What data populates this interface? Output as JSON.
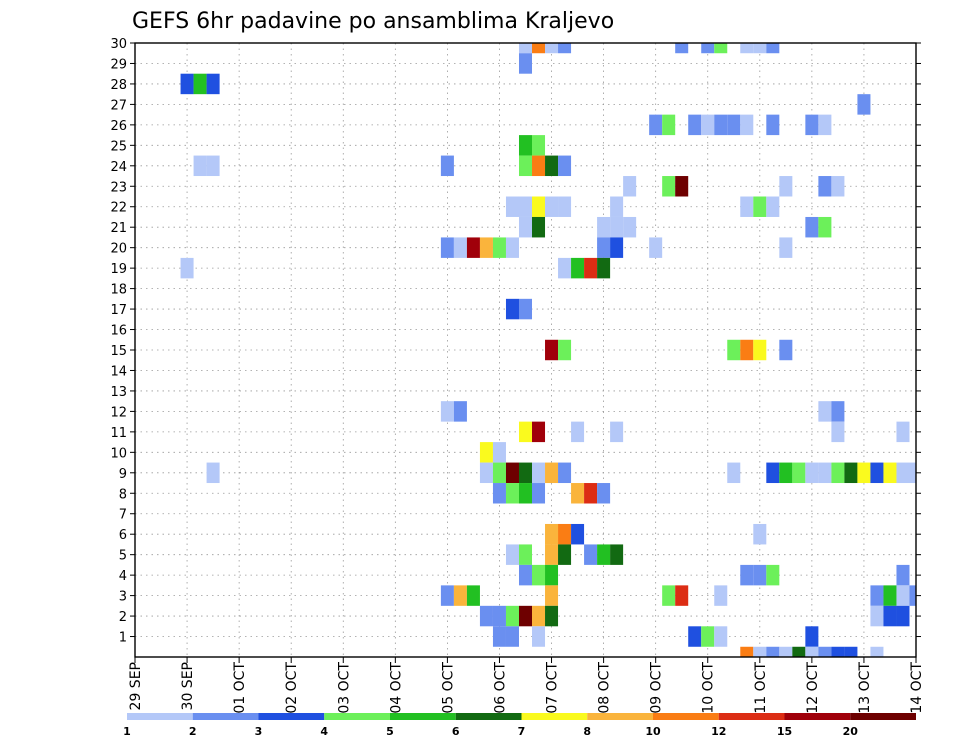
{
  "chart_data": {
    "type": "heatmap",
    "title": "GEFS 6hr padavine po ansamblima Kraljevo",
    "xlabel": "",
    "ylabel": "",
    "x_ticks": [
      "29 SEP",
      "30 SEP",
      "01 OCT",
      "02 OCT",
      "03 OCT",
      "04 OCT",
      "05 OCT",
      "06 OCT",
      "07 OCT",
      "08 OCT",
      "09 OCT",
      "10 OCT",
      "11 OCT",
      "12 OCT",
      "13 OCT",
      "14 OCT"
    ],
    "x_range_days": [
      0,
      15
    ],
    "y_ticks": [
      "1",
      "2",
      "3",
      "4",
      "5",
      "6",
      "7",
      "8",
      "9",
      "10",
      "11",
      "12",
      "13",
      "14",
      "15",
      "16",
      "17",
      "18",
      "19",
      "20",
      "21",
      "22",
      "23",
      "24",
      "25",
      "26",
      "27",
      "28",
      "29",
      "30"
    ],
    "y_range": [
      0,
      30
    ],
    "grid": true,
    "colorbar": {
      "labels": [
        "1",
        "2",
        "3",
        "4",
        "5",
        "6",
        "7",
        "8",
        "10",
        "12",
        "15",
        "20"
      ],
      "colors": [
        "#b4c8f8",
        "#6a8ff0",
        "#1f50e0",
        "#6cf05a",
        "#22c022",
        "#126a12",
        "#fafa1e",
        "#fab43c",
        "#fa7d14",
        "#dc2d14",
        "#a0000a",
        "#6e0000"
      ]
    },
    "cells": [
      [
        7.5,
        30,
        0
      ],
      [
        7.75,
        30,
        8
      ],
      [
        8,
        30,
        0
      ],
      [
        8.25,
        30,
        1
      ],
      [
        10.5,
        30,
        1
      ],
      [
        11,
        30,
        1
      ],
      [
        11.25,
        30,
        3
      ],
      [
        11.75,
        30,
        0
      ],
      [
        12,
        30,
        0
      ],
      [
        12.25,
        30,
        1
      ],
      [
        7.5,
        29,
        1
      ],
      [
        1.0,
        28,
        2
      ],
      [
        1.25,
        28,
        4
      ],
      [
        1.5,
        28,
        2
      ],
      [
        14,
        27,
        1
      ],
      [
        10,
        26,
        1
      ],
      [
        10.25,
        26,
        3
      ],
      [
        10.75,
        26,
        1
      ],
      [
        11,
        26,
        0
      ],
      [
        11.25,
        26,
        1
      ],
      [
        11.5,
        26,
        1
      ],
      [
        11.75,
        26,
        0
      ],
      [
        12.25,
        26,
        1
      ],
      [
        13,
        26,
        1
      ],
      [
        13.25,
        26,
        0
      ],
      [
        7.5,
        25,
        4
      ],
      [
        7.75,
        25,
        3
      ],
      [
        1.25,
        24,
        0
      ],
      [
        1.5,
        24,
        0
      ],
      [
        6.0,
        24,
        1
      ],
      [
        7.5,
        24,
        3
      ],
      [
        7.75,
        24,
        8
      ],
      [
        8,
        24,
        5
      ],
      [
        8.25,
        24,
        1
      ],
      [
        9.5,
        23,
        0
      ],
      [
        10.25,
        23,
        3
      ],
      [
        10.5,
        23,
        11
      ],
      [
        12.5,
        23,
        0
      ],
      [
        13.25,
        23,
        1
      ],
      [
        13.5,
        23,
        0
      ],
      [
        7.25,
        22,
        0
      ],
      [
        7.5,
        22,
        0
      ],
      [
        7.75,
        22,
        6
      ],
      [
        8,
        22,
        0
      ],
      [
        8.25,
        22,
        0
      ],
      [
        9.25,
        22,
        0
      ],
      [
        11.75,
        22,
        0
      ],
      [
        12,
        22,
        3
      ],
      [
        12.25,
        22,
        0
      ],
      [
        7.5,
        21,
        0
      ],
      [
        7.75,
        21,
        5
      ],
      [
        9,
        21,
        0
      ],
      [
        9.25,
        21,
        0
      ],
      [
        9.5,
        21,
        0
      ],
      [
        13,
        21,
        1
      ],
      [
        13.25,
        21,
        3
      ],
      [
        6.0,
        20,
        1
      ],
      [
        6.25,
        20,
        0
      ],
      [
        6.5,
        20,
        10
      ],
      [
        6.75,
        20,
        7
      ],
      [
        7,
        20,
        3
      ],
      [
        7.25,
        20,
        0
      ],
      [
        9,
        20,
        1
      ],
      [
        9.25,
        20,
        2
      ],
      [
        10,
        20,
        0
      ],
      [
        12.5,
        20,
        0
      ],
      [
        1.0,
        19,
        0
      ],
      [
        8.25,
        19,
        0
      ],
      [
        8.5,
        19,
        4
      ],
      [
        8.75,
        19,
        9
      ],
      [
        9,
        19,
        5
      ],
      [
        7.25,
        17,
        2
      ],
      [
        7.5,
        17,
        1
      ],
      [
        8,
        15,
        10
      ],
      [
        8.25,
        15,
        3
      ],
      [
        11.5,
        15,
        3
      ],
      [
        11.75,
        15,
        8
      ],
      [
        12,
        15,
        6
      ],
      [
        12.5,
        15,
        1
      ],
      [
        6.0,
        12,
        0
      ],
      [
        6.25,
        12,
        1
      ],
      [
        13.25,
        12,
        0
      ],
      [
        13.5,
        12,
        1
      ],
      [
        7.5,
        11,
        6
      ],
      [
        7.75,
        11,
        10
      ],
      [
        8.5,
        11,
        0
      ],
      [
        9.25,
        11,
        0
      ],
      [
        13.5,
        11,
        0
      ],
      [
        14.75,
        11,
        0
      ],
      [
        6.75,
        10,
        6
      ],
      [
        7,
        10,
        0
      ],
      [
        1.5,
        9,
        0
      ],
      [
        6.75,
        9,
        0
      ],
      [
        7,
        9,
        3
      ],
      [
        7.25,
        9,
        11
      ],
      [
        7.5,
        9,
        5
      ],
      [
        7.75,
        9,
        0
      ],
      [
        8,
        9,
        7
      ],
      [
        8.25,
        9,
        1
      ],
      [
        11.5,
        9,
        0
      ],
      [
        12.25,
        9,
        2
      ],
      [
        12.5,
        9,
        4
      ],
      [
        12.75,
        9,
        3
      ],
      [
        13,
        9,
        0
      ],
      [
        13.25,
        9,
        0
      ],
      [
        13.5,
        9,
        3
      ],
      [
        13.75,
        9,
        5
      ],
      [
        14,
        9,
        6
      ],
      [
        14.25,
        9,
        2
      ],
      [
        14.5,
        9,
        6
      ],
      [
        14.75,
        9,
        0
      ],
      [
        15,
        9,
        0
      ],
      [
        7,
        8,
        1
      ],
      [
        7.25,
        8,
        3
      ],
      [
        7.5,
        8,
        4
      ],
      [
        7.75,
        8,
        1
      ],
      [
        8.5,
        8,
        7
      ],
      [
        8.75,
        8,
        9
      ],
      [
        9,
        8,
        1
      ],
      [
        8,
        6,
        7
      ],
      [
        8.25,
        6,
        8
      ],
      [
        8.5,
        6,
        2
      ],
      [
        12,
        6,
        0
      ],
      [
        7.25,
        5,
        0
      ],
      [
        7.5,
        5,
        3
      ],
      [
        8,
        5,
        7
      ],
      [
        8.25,
        5,
        5
      ],
      [
        8.75,
        5,
        1
      ],
      [
        9,
        5,
        4
      ],
      [
        9.25,
        5,
        5
      ],
      [
        7.5,
        4,
        1
      ],
      [
        7.75,
        4,
        3
      ],
      [
        8,
        4,
        4
      ],
      [
        11.75,
        4,
        1
      ],
      [
        12,
        4,
        1
      ],
      [
        12.25,
        4,
        3
      ],
      [
        14.75,
        4,
        1
      ],
      [
        6.0,
        3,
        1
      ],
      [
        6.25,
        3,
        7
      ],
      [
        6.5,
        3,
        4
      ],
      [
        8,
        3,
        7
      ],
      [
        10.25,
        3,
        3
      ],
      [
        10.5,
        3,
        9
      ],
      [
        11.25,
        3,
        0
      ],
      [
        14.25,
        3,
        1
      ],
      [
        14.5,
        3,
        4
      ],
      [
        14.75,
        3,
        0
      ],
      [
        15,
        3,
        1
      ],
      [
        6.75,
        2,
        1
      ],
      [
        7,
        2,
        1
      ],
      [
        7.25,
        2,
        3
      ],
      [
        7.5,
        2,
        11
      ],
      [
        7.75,
        2,
        7
      ],
      [
        8,
        2,
        5
      ],
      [
        14.25,
        2,
        0
      ],
      [
        14.5,
        2,
        2
      ],
      [
        14.75,
        2,
        2
      ],
      [
        7,
        1,
        1
      ],
      [
        7.25,
        1,
        1
      ],
      [
        7.75,
        1,
        0
      ],
      [
        10.75,
        1,
        2
      ],
      [
        11,
        1,
        3
      ],
      [
        11.25,
        1,
        0
      ],
      [
        13,
        1,
        2
      ],
      [
        11.75,
        0,
        8
      ],
      [
        12,
        0,
        0
      ],
      [
        12.25,
        0,
        1
      ],
      [
        12.5,
        0,
        0
      ],
      [
        12.75,
        0,
        5
      ],
      [
        13,
        0,
        0
      ],
      [
        13.25,
        0,
        1
      ],
      [
        13.5,
        0,
        2
      ],
      [
        13.75,
        0,
        2
      ],
      [
        14.25,
        0,
        0
      ]
    ]
  }
}
